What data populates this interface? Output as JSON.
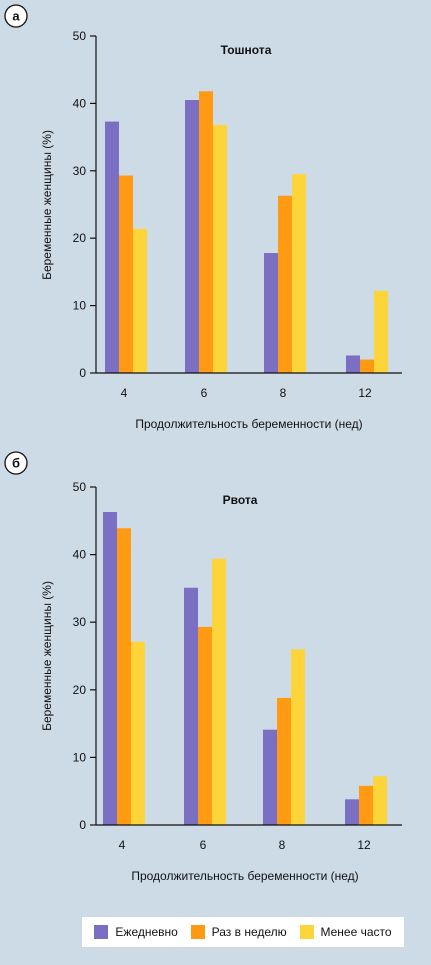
{
  "colors": {
    "daily": "#7b6fc4",
    "weekly": "#ff9a12",
    "less": "#fdd43a"
  },
  "legend": [
    {
      "label": "Ежедневно",
      "color": "#7b6fc4"
    },
    {
      "label": "Раз в неделю",
      "color": "#ff9a12"
    },
    {
      "label": "Менее часто",
      "color": "#fdd43a"
    }
  ],
  "chart_data": [
    {
      "type": "bar",
      "panel": "а",
      "title": "Тошнота",
      "xlabel": "Продолжительность беременности (нед)",
      "ylabel": "Беременные женщины (%)",
      "categories": [
        "4",
        "6",
        "8",
        "12"
      ],
      "ylim": [
        0,
        50
      ],
      "yticks": [
        0,
        10,
        20,
        30,
        40,
        50
      ],
      "grid": false,
      "legend_position": "bottom",
      "series": [
        {
          "name": "Ежедневно",
          "values": [
            37.3,
            40.5,
            17.8,
            2.6
          ]
        },
        {
          "name": "Раз в неделю",
          "values": [
            29.3,
            41.8,
            26.3,
            2.0
          ]
        },
        {
          "name": "Менее часто",
          "values": [
            21.4,
            36.8,
            29.5,
            12.2
          ]
        }
      ]
    },
    {
      "type": "bar",
      "panel": "б",
      "title": "Рвота",
      "xlabel": "Продолжительность беременности (нед)",
      "ylabel": "Беременные женщины (%)",
      "categories": [
        "4",
        "6",
        "8",
        "12"
      ],
      "ylim": [
        0,
        50
      ],
      "yticks": [
        0,
        10,
        20,
        30,
        40,
        50
      ],
      "grid": false,
      "legend_position": "bottom",
      "series": [
        {
          "name": "Ежедневно",
          "values": [
            46.3,
            35.1,
            14.1,
            3.8
          ]
        },
        {
          "name": "Раз в неделю",
          "values": [
            43.9,
            29.3,
            18.8,
            5.8
          ]
        },
        {
          "name": "Менее часто",
          "values": [
            27.1,
            39.4,
            26.0,
            7.2
          ]
        }
      ]
    }
  ]
}
